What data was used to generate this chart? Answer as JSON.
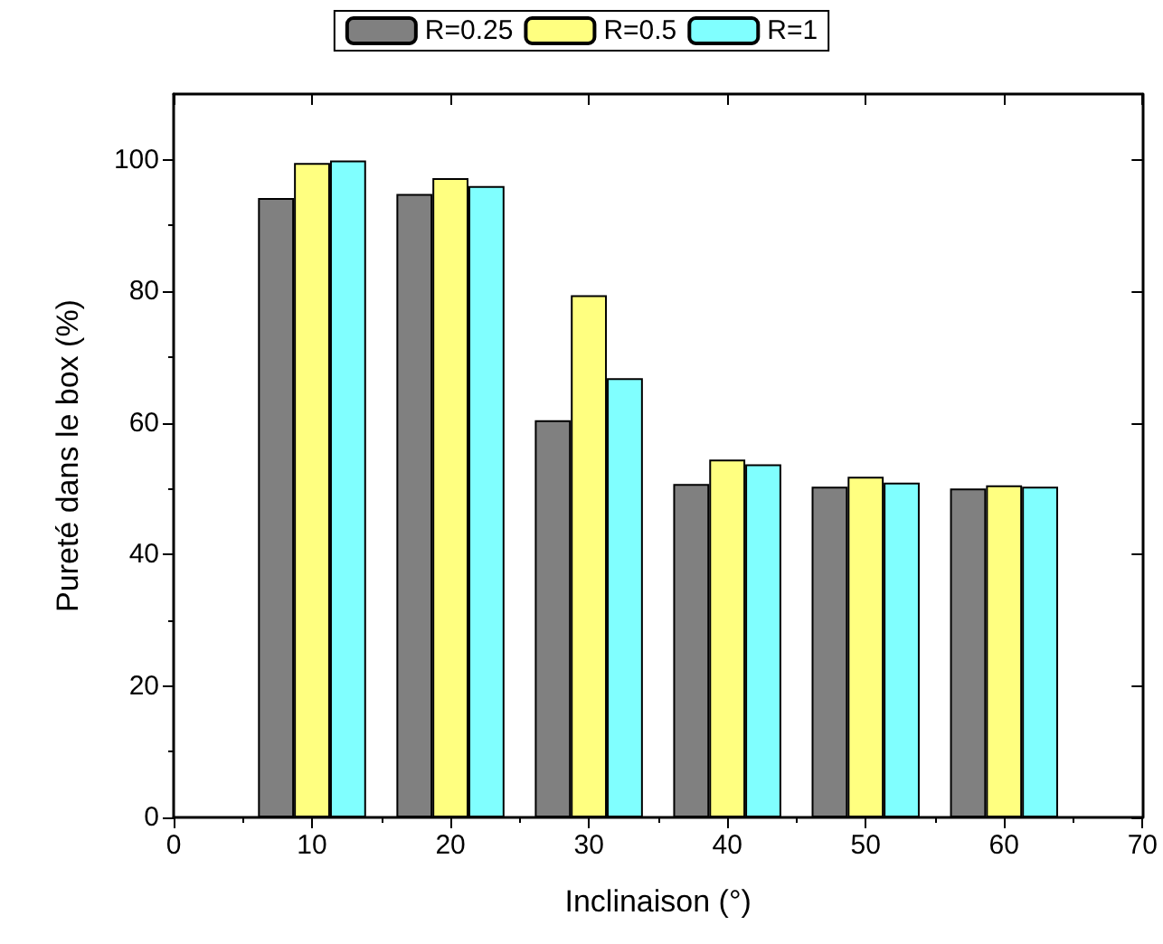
{
  "chart_data": {
    "type": "bar",
    "xlabel": "Inclinaison (°)",
    "ylabel": "Pureté dans le box (%)",
    "x": [
      10,
      20,
      30,
      40,
      50,
      60
    ],
    "series": [
      {
        "name": "R=0.25",
        "color": "#808080",
        "values": [
          94.2,
          94.8,
          60.4,
          50.7,
          50.3,
          50.0
        ]
      },
      {
        "name": "R=0.5",
        "color": "#ffff80",
        "values": [
          99.5,
          97.2,
          79.4,
          54.4,
          51.8,
          50.5
        ]
      },
      {
        "name": "R=1",
        "color": "#80ffff",
        "values": [
          99.9,
          96.0,
          66.8,
          53.7,
          50.9,
          50.3
        ]
      }
    ],
    "xlim": [
      0,
      70
    ],
    "xticks": [
      0,
      10,
      20,
      30,
      40,
      50,
      60,
      70
    ],
    "ylim": [
      0,
      110
    ],
    "yticks": [
      0,
      20,
      40,
      60,
      80,
      100
    ],
    "grid": false,
    "legend": "top"
  }
}
